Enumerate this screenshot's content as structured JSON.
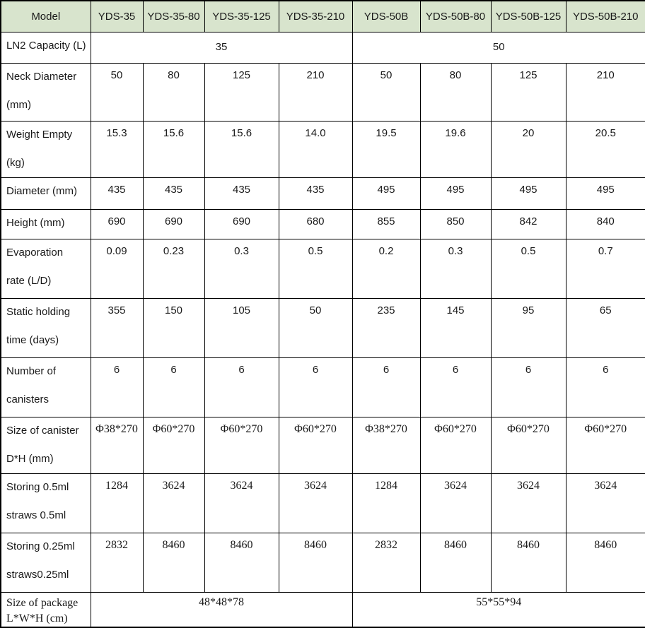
{
  "table": {
    "header": {
      "label": "Model",
      "models": [
        "YDS-35",
        "YDS-35-80",
        "YDS-35-125",
        "YDS-35-210",
        "YDS-50B",
        "YDS-50B-80",
        "YDS-50B-125",
        "YDS-50B-210"
      ]
    },
    "rows": [
      {
        "id": "ln2-capacity",
        "label_lines": [
          "LN2 Capacity (L)"
        ],
        "span": true,
        "values": [
          "35",
          "50"
        ]
      },
      {
        "id": "neck-diameter",
        "label_lines": [
          "Neck Diameter",
          "(mm)"
        ],
        "span": false,
        "values": [
          "50",
          "80",
          "125",
          "210",
          "50",
          "80",
          "125",
          "210"
        ]
      },
      {
        "id": "weight-empty",
        "label_lines": [
          "Weight Empty",
          "(kg)"
        ],
        "span": false,
        "values": [
          "15.3",
          "15.6",
          "15.6",
          "14.0",
          "19.5",
          "19.6",
          "20",
          "20.5"
        ]
      },
      {
        "id": "diameter",
        "label_lines": [
          "Diameter (mm)"
        ],
        "span": false,
        "values": [
          "435",
          "435",
          "435",
          "435",
          "495",
          "495",
          "495",
          "495"
        ]
      },
      {
        "id": "height",
        "label_lines": [
          "Height (mm)"
        ],
        "span": false,
        "values": [
          "690",
          "690",
          "690",
          "680",
          "855",
          "850",
          "842",
          "840"
        ]
      },
      {
        "id": "evaporation-rate",
        "label_lines": [
          "Evaporation",
          "rate (L/D)"
        ],
        "span": false,
        "values": [
          "0.09",
          "0.23",
          "0.3",
          "0.5",
          "0.2",
          "0.3",
          "0.5",
          "0.7"
        ]
      },
      {
        "id": "static-holding-time",
        "label_lines": [
          "Static holding",
          "time (days)"
        ],
        "span": false,
        "values": [
          "355",
          "150",
          "105",
          "50",
          "235",
          "145",
          "95",
          "65"
        ]
      },
      {
        "id": "number-of-canisters",
        "label_lines": [
          "Number of",
          "canisters"
        ],
        "span": false,
        "values": [
          "6",
          "6",
          "6",
          "6",
          "6",
          "6",
          "6",
          "6"
        ]
      },
      {
        "id": "canister-size",
        "label_lines": [
          "Size of canister",
          "D*H (mm)"
        ],
        "span": false,
        "serif_values": true,
        "values": [
          "Φ38*270",
          "Φ60*270",
          "Φ60*270",
          "Φ60*270",
          "Φ38*270",
          "Φ60*270",
          "Φ60*270",
          "Φ60*270"
        ]
      },
      {
        "id": "storing-05ml-straws",
        "label_lines": [
          "Storing 0.5ml",
          "straws 0.5ml"
        ],
        "span": false,
        "serif_values": true,
        "values": [
          "1284",
          "3624",
          "3624",
          "3624",
          "1284",
          "3624",
          "3624",
          "3624"
        ]
      },
      {
        "id": "storing-025ml-straws",
        "label_lines": [
          "Storing 0.25ml",
          "straws0.25ml"
        ],
        "span": false,
        "serif_values": true,
        "values": [
          "2832",
          "8460",
          "8460",
          "8460",
          "2832",
          "8460",
          "8460",
          "8460"
        ]
      },
      {
        "id": "package-size",
        "label_lines": [
          "Size of package",
          "L*W*H (cm)"
        ],
        "span": true,
        "serif_values": true,
        "serif_label": true,
        "tight_label": true,
        "values": [
          "48*48*78",
          "55*55*94"
        ]
      }
    ],
    "colors": {
      "header_bg": "#d8e4cd",
      "border": "#000000",
      "text": "#1a1a1a"
    }
  }
}
